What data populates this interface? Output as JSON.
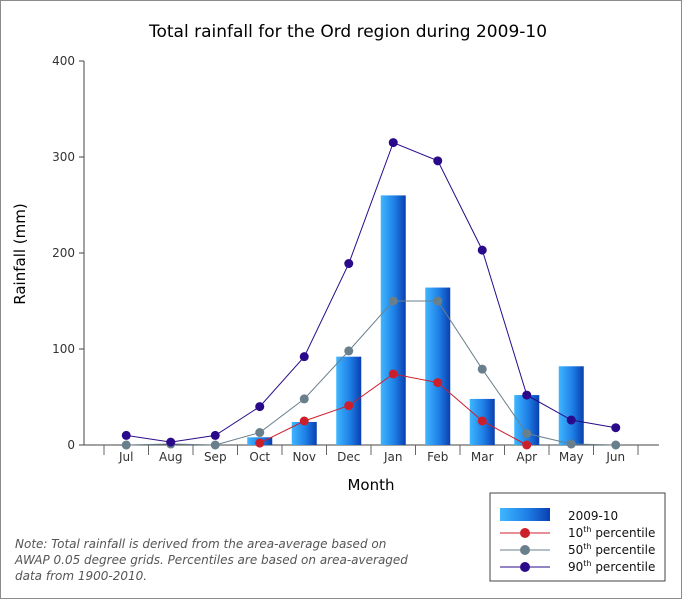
{
  "chart_data": {
    "type": "bar",
    "title": "Total rainfall for the Ord region during 2009-10",
    "xlabel": "Month",
    "ylabel": "Rainfall (mm)",
    "ylim": [
      0,
      400
    ],
    "yticks": [
      "0",
      "100",
      "200",
      "300",
      "400"
    ],
    "categories": [
      "Jul",
      "Aug",
      "Sep",
      "Oct",
      "Nov",
      "Dec",
      "Jan",
      "Feb",
      "Mar",
      "Apr",
      "May",
      "Jun"
    ],
    "grid": false,
    "legend_position": "bottom-right",
    "series": [
      {
        "name": "2009-10",
        "kind": "bar",
        "color": "#1a5fd0",
        "values": [
          0,
          0,
          0,
          8,
          24,
          92,
          260,
          164,
          48,
          52,
          82,
          0
        ]
      },
      {
        "name": "10th percentile",
        "kind": "line",
        "color": "#cc1f2c",
        "values": [
          null,
          null,
          null,
          2,
          25,
          41,
          74,
          65,
          25,
          0,
          null,
          null
        ]
      },
      {
        "name": "50th percentile",
        "kind": "line",
        "color": "#6a7f8c",
        "values": [
          0,
          1,
          0,
          13,
          48,
          98,
          150,
          150,
          79,
          12,
          1,
          0
        ]
      },
      {
        "name": "90th percentile",
        "kind": "line",
        "color": "#2a0a8a",
        "values": [
          10,
          3,
          10,
          40,
          92,
          189,
          315,
          296,
          203,
          52,
          26,
          18
        ]
      }
    ],
    "legend": [
      {
        "label": "2009-10",
        "sup": ""
      },
      {
        "label": " percentile",
        "sup": "10th"
      },
      {
        "label": " percentile",
        "sup": "50th"
      },
      {
        "label": " percentile",
        "sup": "90th"
      }
    ]
  },
  "note": "Note: Total rainfall is derived from the area-average based on AWAP 0.05 degree grids. Percentiles are based on area-averaged data from 1900-2010."
}
